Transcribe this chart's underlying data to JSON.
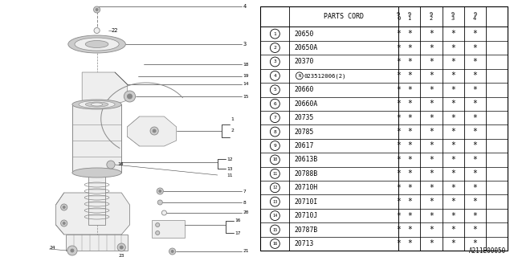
{
  "diagram_code": "A211E00050",
  "table_header": "PARTS CORD",
  "year_cols": [
    "9\n0",
    "9\n1",
    "9\n2",
    "9\n3",
    "9\n4"
  ],
  "rows": [
    {
      "num": "1",
      "code": "20650",
      "special": false
    },
    {
      "num": "2",
      "code": "20650A",
      "special": false
    },
    {
      "num": "3",
      "code": "20370",
      "special": false
    },
    {
      "num": "4",
      "code": "023512006(2)",
      "special": true
    },
    {
      "num": "5",
      "code": "20660",
      "special": false
    },
    {
      "num": "6",
      "code": "20660A",
      "special": false
    },
    {
      "num": "7",
      "code": "20735",
      "special": false
    },
    {
      "num": "8",
      "code": "20785",
      "special": false
    },
    {
      "num": "9",
      "code": "20617",
      "special": false
    },
    {
      "num": "10",
      "code": "20613B",
      "special": false
    },
    {
      "num": "11",
      "code": "20788B",
      "special": false
    },
    {
      "num": "12",
      "code": "20710H",
      "special": false
    },
    {
      "num": "13",
      "code": "20710I",
      "special": false
    },
    {
      "num": "14",
      "code": "20710J",
      "special": false
    },
    {
      "num": "15",
      "code": "20787B",
      "special": false
    },
    {
      "num": "16",
      "code": "20713",
      "special": false
    }
  ],
  "bg_color": "#ffffff",
  "line_color": "#000000",
  "text_color": "#000000"
}
